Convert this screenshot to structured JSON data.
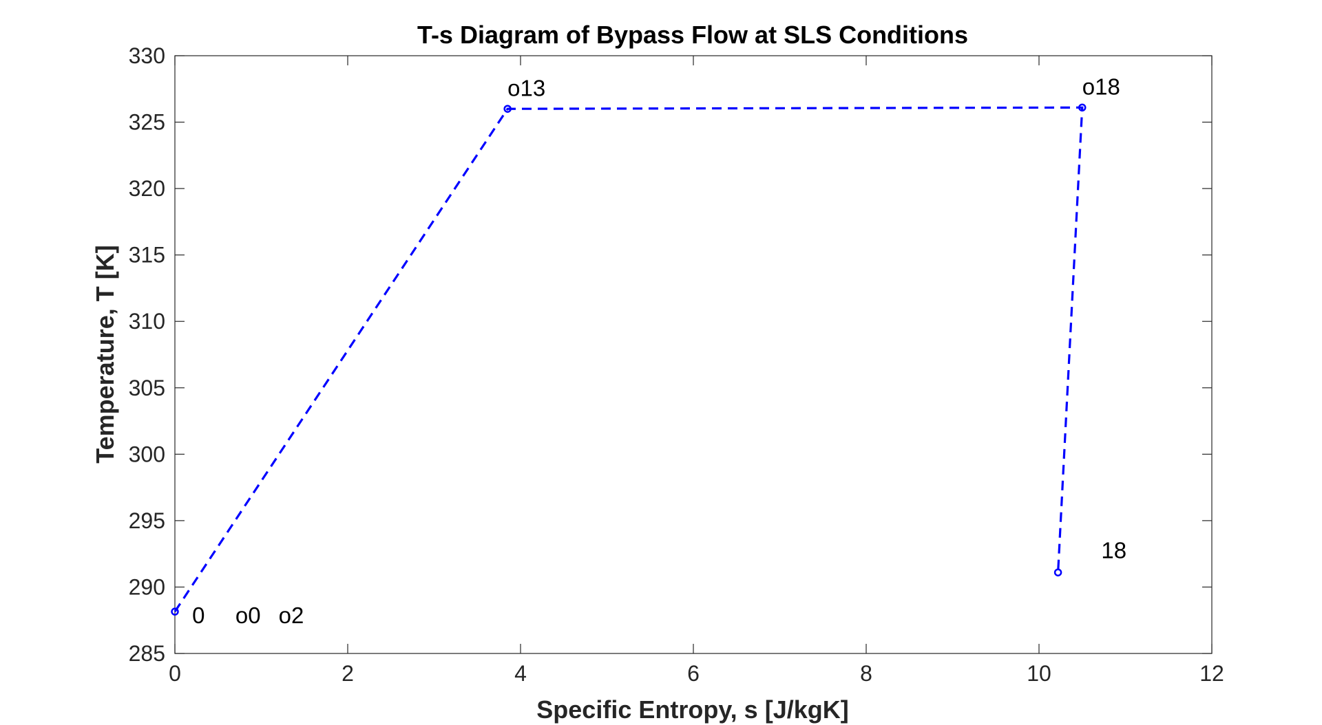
{
  "chart_data": {
    "type": "line",
    "title": "T-s Diagram of Bypass Flow at SLS Conditions",
    "xlabel": "Specific Entropy, s [J/kgK]",
    "ylabel": "Temperature, T [K]",
    "xlim": [
      0,
      12
    ],
    "ylim": [
      285,
      330
    ],
    "xticks": [
      0,
      2,
      4,
      6,
      8,
      10,
      12
    ],
    "yticks": [
      285,
      290,
      295,
      300,
      305,
      310,
      315,
      320,
      325,
      330
    ],
    "grid": false,
    "series": [
      {
        "line_style": "dashed",
        "marker": "circle",
        "color": "#0000ff",
        "x": [
          0,
          3.85,
          10.5,
          10.22
        ],
        "y": [
          288.15,
          326.0,
          326.1,
          291.1
        ]
      }
    ],
    "annotations": [
      {
        "text": "0",
        "x": 0.2,
        "y": 287.9
      },
      {
        "text": "o0",
        "x": 0.7,
        "y": 287.9
      },
      {
        "text": "o2",
        "x": 1.2,
        "y": 287.9
      },
      {
        "text": "o13",
        "x": 3.85,
        "y": 327.6
      },
      {
        "text": "o18",
        "x": 10.5,
        "y": 327.7
      },
      {
        "text": "18",
        "x": 10.72,
        "y": 292.8
      }
    ]
  }
}
